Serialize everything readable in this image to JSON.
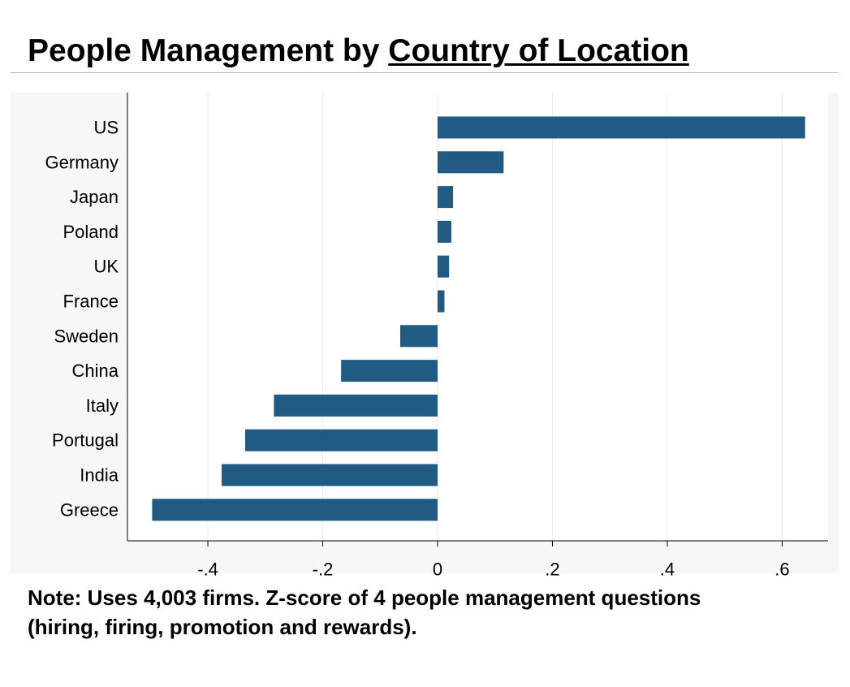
{
  "title": {
    "prefix": "People Management by ",
    "underlined": "Country of Location"
  },
  "note": {
    "line1": "Note: Uses 4,003 firms. Z-score of 4 people management questions",
    "line2": "(hiring, firing, promotion and rewards)."
  },
  "colors": {
    "bar": "#215a82",
    "plot_background": "#ffffff",
    "outer_background": "#f7f7f7",
    "grid": "#eaeaea"
  },
  "chart_data": {
    "type": "bar",
    "orientation": "horizontal",
    "title": "People Management by Country of Location",
    "xlabel": "",
    "ylabel": "",
    "xlim": [
      -0.54,
      0.68
    ],
    "categories": [
      "US",
      "Germany",
      "Japan",
      "Poland",
      "UK",
      "France",
      "Sweden",
      "China",
      "Italy",
      "Portugal",
      "India",
      "Greece"
    ],
    "values": [
      0.64,
      0.115,
      0.027,
      0.024,
      0.02,
      0.012,
      -0.065,
      -0.168,
      -0.285,
      -0.335,
      -0.376,
      -0.497
    ],
    "x_ticks": [
      -0.4,
      -0.2,
      0,
      0.2,
      0.4,
      0.6
    ],
    "x_tick_labels": [
      "-.4",
      "-.2",
      "0",
      ".2",
      ".4",
      ".6"
    ],
    "grid": true,
    "legend": "none"
  }
}
